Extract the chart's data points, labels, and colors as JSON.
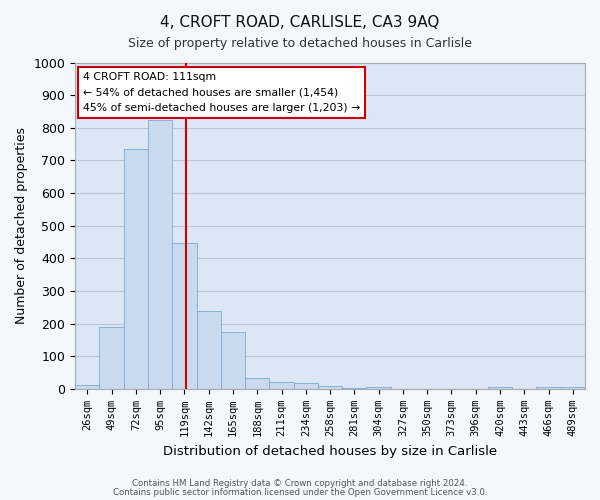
{
  "title": "4, CROFT ROAD, CARLISLE, CA3 9AQ",
  "subtitle": "Size of property relative to detached houses in Carlisle",
  "xlabel": "Distribution of detached houses by size in Carlisle",
  "ylabel": "Number of detached properties",
  "bar_labels": [
    "26sqm",
    "49sqm",
    "72sqm",
    "95sqm",
    "119sqm",
    "142sqm",
    "165sqm",
    "188sqm",
    "211sqm",
    "234sqm",
    "258sqm",
    "281sqm",
    "304sqm",
    "327sqm",
    "350sqm",
    "373sqm",
    "396sqm",
    "420sqm",
    "443sqm",
    "466sqm",
    "489sqm"
  ],
  "bar_values": [
    13,
    190,
    735,
    825,
    448,
    238,
    175,
    33,
    22,
    17,
    10,
    4,
    7,
    0,
    0,
    0,
    0,
    5,
    0,
    7,
    5
  ],
  "bar_color": "#c9d9ee",
  "bar_edgecolor": "#7bacd4",
  "bar_width": 1.0,
  "vline_x_index": 4.08,
  "vline_color": "#cc0000",
  "ylim": [
    0,
    1000
  ],
  "yticks": [
    0,
    100,
    200,
    300,
    400,
    500,
    600,
    700,
    800,
    900,
    1000
  ],
  "annotation_title": "4 CROFT ROAD: 111sqm",
  "annotation_line1": "← 54% of detached houses are smaller (1,454)",
  "annotation_line2": "45% of semi-detached houses are larger (1,203) →",
  "annotation_box_facecolor": "#ffffff",
  "annotation_box_edgecolor": "#cc0000",
  "fig_facecolor": "#f4f7fc",
  "plot_facecolor": "#dce6f5",
  "grid_color": "#b8c8dc",
  "footer1": "Contains HM Land Registry data © Crown copyright and database right 2024.",
  "footer2": "Contains public sector information licensed under the Open Government Licence v3.0."
}
